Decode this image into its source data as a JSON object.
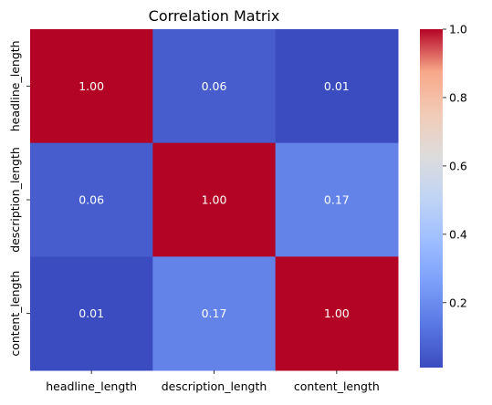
{
  "chart_data": {
    "type": "heatmap",
    "title": "Correlation Matrix",
    "xlabel": "",
    "ylabel": "",
    "x_categories": [
      "headline_length",
      "description_length",
      "content_length"
    ],
    "y_categories": [
      "headline_length",
      "description_length",
      "content_length"
    ],
    "values": [
      [
        1.0,
        0.06,
        0.01
      ],
      [
        0.06,
        1.0,
        0.17
      ],
      [
        0.01,
        0.17,
        1.0
      ]
    ],
    "cell_labels": [
      [
        "1.00",
        "0.06",
        "0.01"
      ],
      [
        "0.06",
        "1.00",
        "0.17"
      ],
      [
        "0.01",
        "0.17",
        "1.00"
      ]
    ],
    "colormap": "coolwarm",
    "colorbar": {
      "vmin": 0.01,
      "vmax": 1.0,
      "ticks": [
        0.2,
        0.4,
        0.6,
        0.8,
        1.0
      ],
      "tick_labels": [
        "0.2",
        "0.4",
        "0.6",
        "0.8",
        "1.0"
      ]
    },
    "grid": false
  }
}
